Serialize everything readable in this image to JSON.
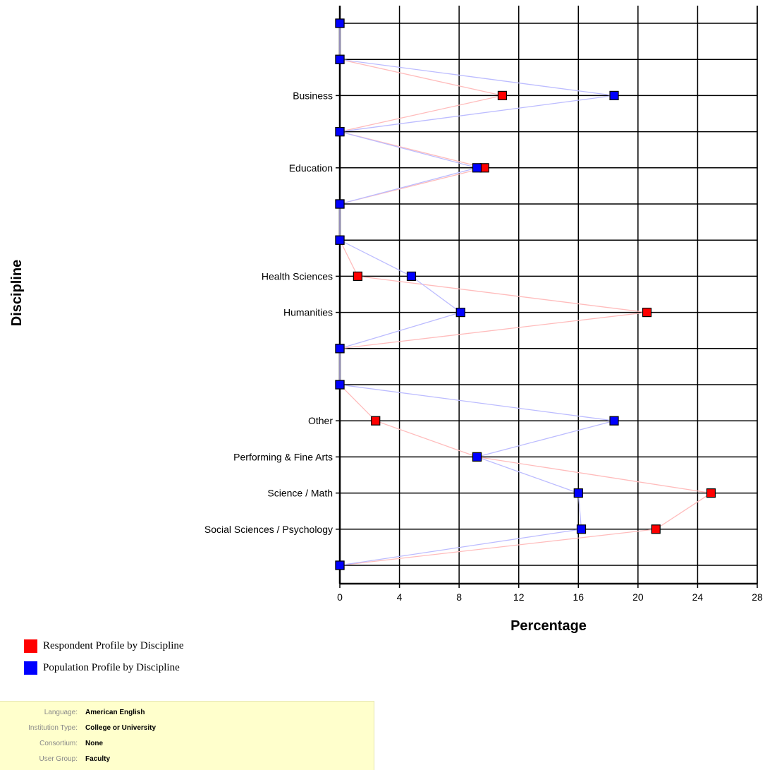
{
  "chart_data": {
    "type": "line",
    "orientation": "horizontal",
    "ylabel": "Discipline",
    "xlabel": "Percentage",
    "xlim": [
      0,
      28
    ],
    "x_ticks": [
      "0",
      "4",
      "8",
      "12",
      "16",
      "20",
      "24",
      "28"
    ],
    "grid": true,
    "categories": [
      "",
      "",
      "Business",
      "",
      "Education",
      "",
      "",
      "Health Sciences",
      "Humanities",
      "",
      "",
      "Other",
      "Performing & Fine Arts",
      "Science / Math",
      "Social Sciences / Psychology",
      ""
    ],
    "series": [
      {
        "name": "Respondent Profile by Discipline",
        "color": "#ff0000",
        "values": [
          0,
          0,
          10.9,
          0,
          9.7,
          0,
          0,
          1.2,
          20.6,
          0,
          0,
          2.4,
          9.2,
          24.9,
          21.2,
          0
        ]
      },
      {
        "name": "Population Profile by Discipline",
        "color": "#0000ff",
        "values": [
          0,
          0,
          18.4,
          0,
          9.2,
          0,
          0,
          4.8,
          8.1,
          0,
          0,
          18.4,
          9.2,
          16.0,
          16.2,
          0
        ]
      }
    ]
  },
  "legend": {
    "items": [
      {
        "label": "Respondent Profile by Discipline",
        "color": "#ff0000"
      },
      {
        "label": "Population Profile by Discipline",
        "color": "#0000ff"
      }
    ]
  },
  "info": {
    "rows": [
      {
        "label": "Language:",
        "value": "American English"
      },
      {
        "label": "Institution Type:",
        "value": "College or University"
      },
      {
        "label": "Consortium:",
        "value": "None"
      },
      {
        "label": "User Group:",
        "value": "Faculty"
      }
    ]
  }
}
